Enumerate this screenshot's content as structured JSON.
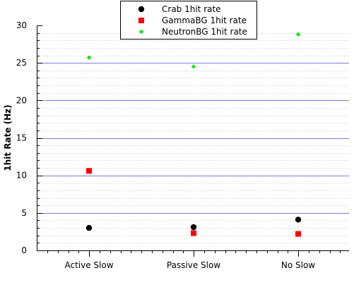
{
  "chart_data": {
    "type": "scatter",
    "title": "",
    "xlabel": "",
    "ylabel": "1hit Rate (Hz)",
    "categories": [
      "Active Slow",
      "Passive Slow",
      "No Slow"
    ],
    "ylim": [
      0,
      30
    ],
    "yticks": [
      0,
      5,
      10,
      15,
      20,
      25,
      30
    ],
    "grid": true,
    "legend": "top-center",
    "series": [
      {
        "name": "Crab 1hit rate",
        "marker": "circle",
        "color": "#000000",
        "values": [
          3.0,
          3.1,
          4.1
        ]
      },
      {
        "name": "GammaBG 1hit rate",
        "marker": "square",
        "color": "#ff0000",
        "values": [
          10.6,
          2.3,
          2.2
        ]
      },
      {
        "name": "NeutronBG 1hit rate",
        "marker": "diamond",
        "color": "#00ee00",
        "values": [
          25.7,
          24.5,
          28.8
        ]
      }
    ]
  }
}
